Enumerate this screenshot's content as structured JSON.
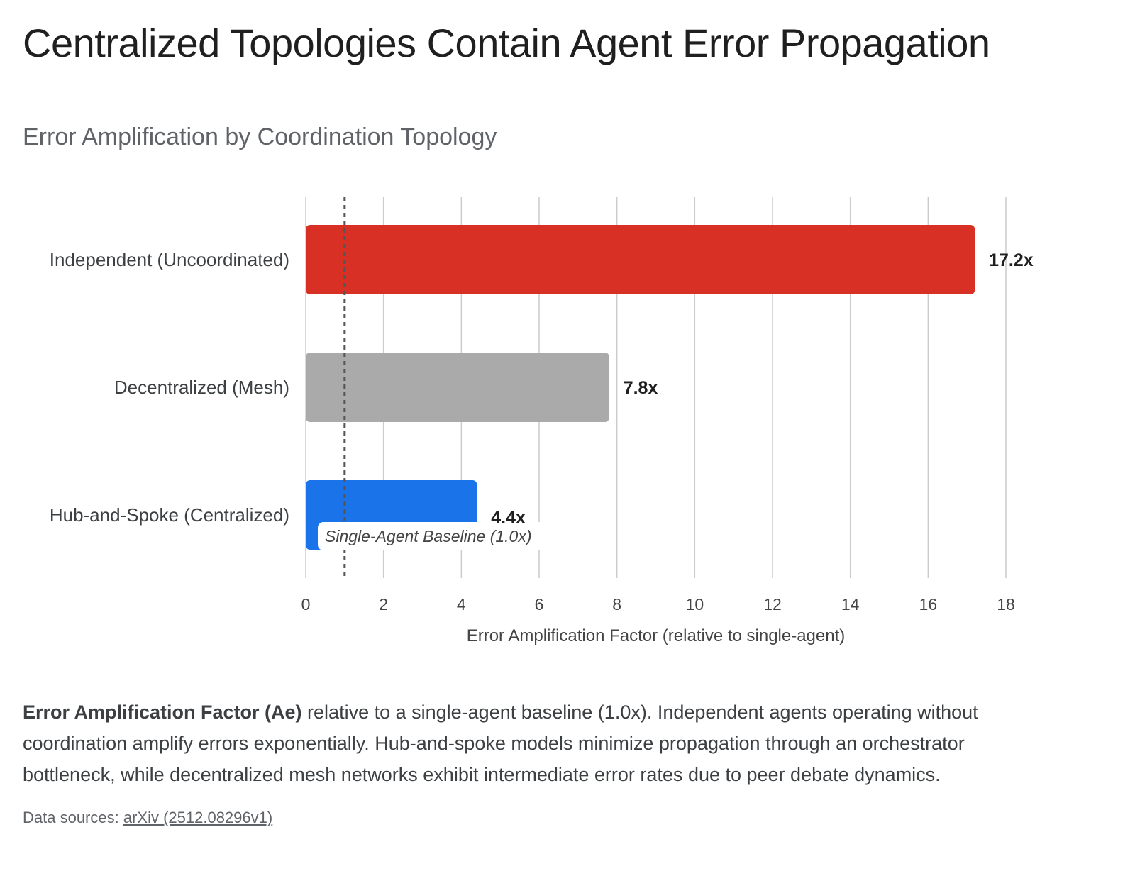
{
  "header": {
    "title": "Centralized Topologies Contain Agent Error Propagation"
  },
  "chart_data": {
    "type": "bar",
    "orientation": "horizontal",
    "title": "Error Amplification by Coordination Topology",
    "categories": [
      "Independent (Uncoordinated)",
      "Decentralized (Mesh)",
      "Hub-and-Spoke (Centralized)"
    ],
    "values": [
      17.2,
      7.8,
      4.4
    ],
    "value_labels": [
      "17.2x",
      "7.8x",
      "4.4x"
    ],
    "colors": [
      "#d93025",
      "#aaaaaa",
      "#1a73e8"
    ],
    "xlabel": "Error Amplification Factor (relative to single-agent)",
    "ylabel": "",
    "xlim": [
      0,
      18
    ],
    "xticks": [
      0,
      2,
      4,
      6,
      8,
      10,
      12,
      14,
      16,
      18
    ],
    "grid": true,
    "reference_line": {
      "value": 1.0,
      "label": "Single-Agent Baseline (1.0x)",
      "style": "dashed"
    }
  },
  "caption": {
    "bold": "Error Amplification Factor (Ae)",
    "text": " relative to a single-agent baseline (1.0x). Independent agents operating without coordination amplify errors exponentially. Hub-and-spoke models minimize propagation through an orchestrator bottleneck, while decentralized mesh networks exhibit intermediate error rates due to peer debate dynamics."
  },
  "sources": {
    "prefix": "Data sources: ",
    "link_text": "arXiv (2512.08296v1)"
  }
}
